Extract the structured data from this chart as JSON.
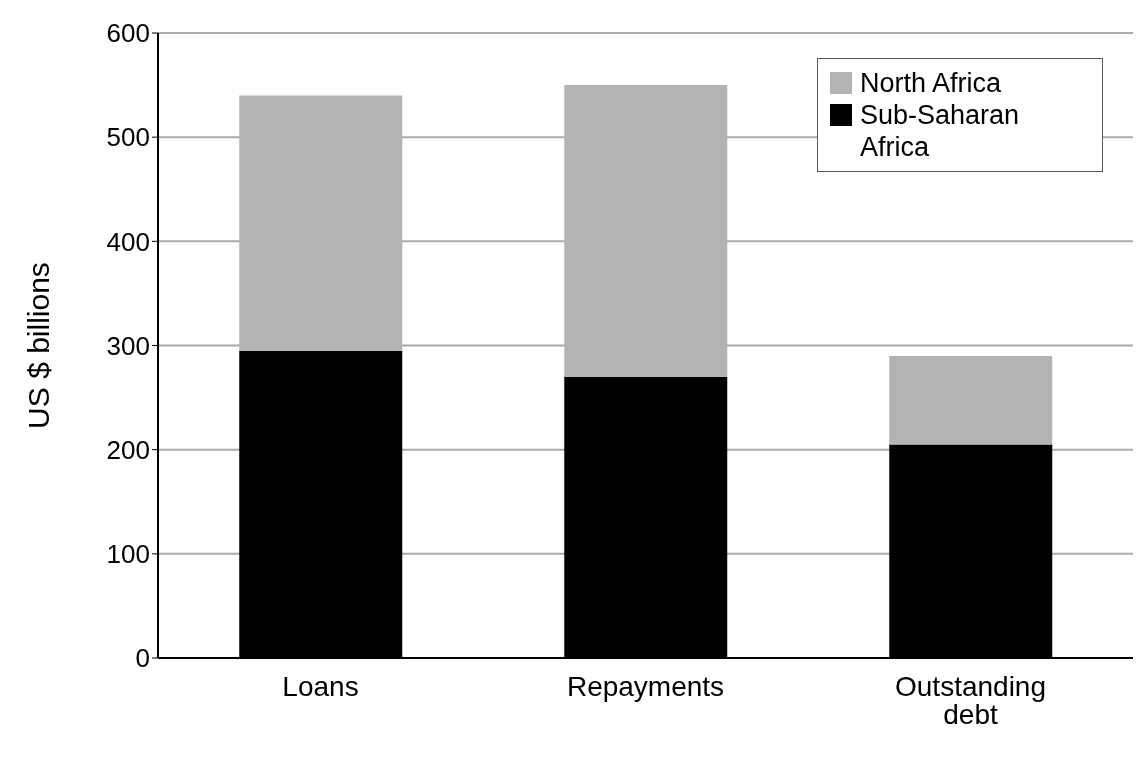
{
  "chart_data": {
    "type": "bar",
    "ylabel": "US $ billions",
    "categories": [
      "Loans",
      "Repayments",
      "Outstanding debt"
    ],
    "stacked": true,
    "series": [
      {
        "name": "Sub-Saharan Africa",
        "color": "#000000",
        "values": [
          295,
          270,
          205
        ]
      },
      {
        "name": "North Africa",
        "color": "#b3b3b3",
        "values": [
          245,
          280,
          85
        ]
      }
    ],
    "ylim": [
      0,
      600
    ],
    "yticks": [
      0,
      100,
      200,
      300,
      400,
      500,
      600
    ],
    "grid": "y",
    "legend": "top right"
  }
}
